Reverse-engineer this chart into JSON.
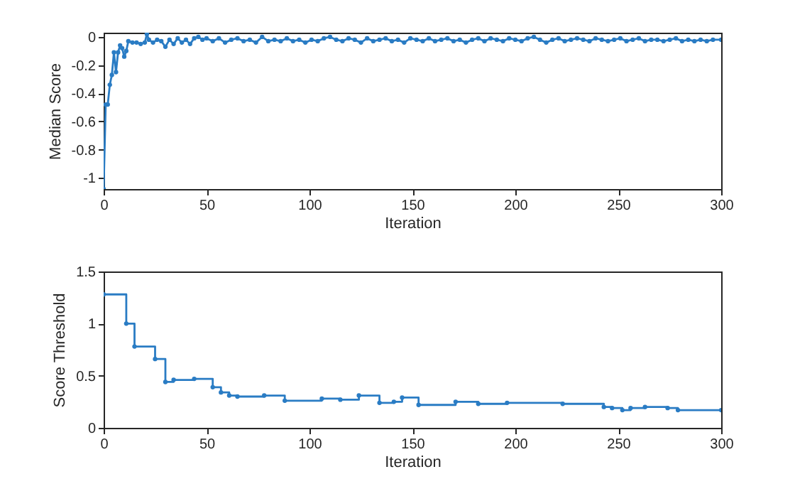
{
  "chart_data": [
    {
      "type": "line",
      "xlabel": "Iteration",
      "ylabel": "Median Score",
      "xlim": [
        0,
        300
      ],
      "xticks": [
        0,
        50,
        100,
        150,
        200,
        250,
        300
      ],
      "ylim": [
        -1.08,
        0.03
      ],
      "yticks": [
        -1,
        -0.8,
        -0.6,
        -0.4,
        -0.2,
        0
      ],
      "grid": false,
      "marker": "circle",
      "line_style": "solid",
      "series": [
        {
          "color": "#2a7cc4",
          "x": [
            0,
            1,
            2,
            3,
            4,
            5,
            6,
            7,
            8,
            9,
            10,
            11,
            12,
            14,
            16,
            18,
            20,
            21,
            22,
            24,
            26,
            28,
            30,
            32,
            34,
            36,
            38,
            40,
            42,
            44,
            46,
            48,
            50,
            53,
            56,
            59,
            62,
            65,
            68,
            71,
            74,
            77,
            80,
            83,
            86,
            89,
            92,
            95,
            98,
            101,
            104,
            107,
            110,
            113,
            116,
            119,
            122,
            125,
            128,
            131,
            134,
            137,
            140,
            143,
            146,
            149,
            152,
            155,
            158,
            161,
            164,
            167,
            170,
            173,
            176,
            179,
            182,
            185,
            188,
            191,
            194,
            197,
            200,
            203,
            206,
            209,
            212,
            215,
            218,
            221,
            224,
            227,
            230,
            233,
            236,
            239,
            242,
            245,
            248,
            251,
            254,
            257,
            260,
            263,
            266,
            269,
            272,
            275,
            278,
            281,
            284,
            287,
            290,
            293,
            296,
            300
          ],
          "values": [
            -1.08,
            -0.48,
            -0.48,
            -0.34,
            -0.27,
            -0.11,
            -0.25,
            -0.11,
            -0.06,
            -0.08,
            -0.14,
            -0.1,
            -0.03,
            -0.04,
            -0.04,
            -0.05,
            -0.04,
            0.02,
            -0.02,
            -0.04,
            -0.02,
            -0.03,
            -0.07,
            -0.02,
            -0.05,
            -0.01,
            -0.04,
            -0.02,
            -0.05,
            -0.01,
            0.0,
            -0.02,
            -0.01,
            -0.03,
            -0.01,
            -0.04,
            -0.02,
            -0.01,
            -0.03,
            -0.02,
            -0.04,
            0.0,
            -0.03,
            -0.02,
            -0.03,
            -0.01,
            -0.03,
            -0.02,
            -0.04,
            -0.02,
            -0.03,
            -0.01,
            0.0,
            -0.02,
            -0.03,
            -0.01,
            -0.02,
            -0.04,
            -0.01,
            -0.03,
            -0.02,
            -0.01,
            -0.03,
            -0.02,
            -0.04,
            -0.01,
            -0.02,
            -0.03,
            -0.01,
            -0.03,
            -0.02,
            -0.01,
            -0.03,
            -0.02,
            -0.04,
            -0.02,
            -0.01,
            -0.03,
            -0.01,
            -0.02,
            -0.03,
            -0.01,
            -0.02,
            -0.03,
            -0.01,
            0.0,
            -0.02,
            -0.04,
            -0.02,
            -0.01,
            -0.03,
            -0.02,
            -0.01,
            -0.02,
            -0.03,
            -0.01,
            -0.02,
            -0.03,
            -0.02,
            -0.01,
            -0.03,
            -0.02,
            -0.01,
            -0.03,
            -0.02,
            -0.02,
            -0.03,
            -0.02,
            -0.01,
            -0.03,
            -0.02,
            -0.03,
            -0.02,
            -0.03,
            -0.02,
            -0.02
          ]
        }
      ]
    },
    {
      "type": "step",
      "xlabel": "Iteration",
      "ylabel": "Score Threshold",
      "xlim": [
        0,
        300
      ],
      "xticks": [
        0,
        50,
        100,
        150,
        200,
        250,
        300
      ],
      "ylim": [
        0,
        1.5
      ],
      "yticks": [
        0,
        0.5,
        1,
        1.5
      ],
      "grid": false,
      "marker": "circle",
      "line_style": "solid",
      "series": [
        {
          "color": "#2a7cc4",
          "x": [
            0,
            11,
            15,
            25,
            30,
            34,
            44,
            53,
            57,
            61,
            65,
            78,
            88,
            106,
            115,
            124,
            134,
            141,
            145,
            153,
            171,
            182,
            196,
            223,
            243,
            247,
            252,
            256,
            263,
            274,
            279,
            300
          ],
          "values": [
            1.28,
            1.0,
            0.78,
            0.66,
            0.44,
            0.46,
            0.47,
            0.39,
            0.34,
            0.31,
            0.3,
            0.31,
            0.26,
            0.28,
            0.27,
            0.31,
            0.24,
            0.25,
            0.29,
            0.22,
            0.25,
            0.23,
            0.24,
            0.23,
            0.2,
            0.19,
            0.17,
            0.19,
            0.2,
            0.19,
            0.17,
            0.17
          ]
        }
      ]
    }
  ]
}
